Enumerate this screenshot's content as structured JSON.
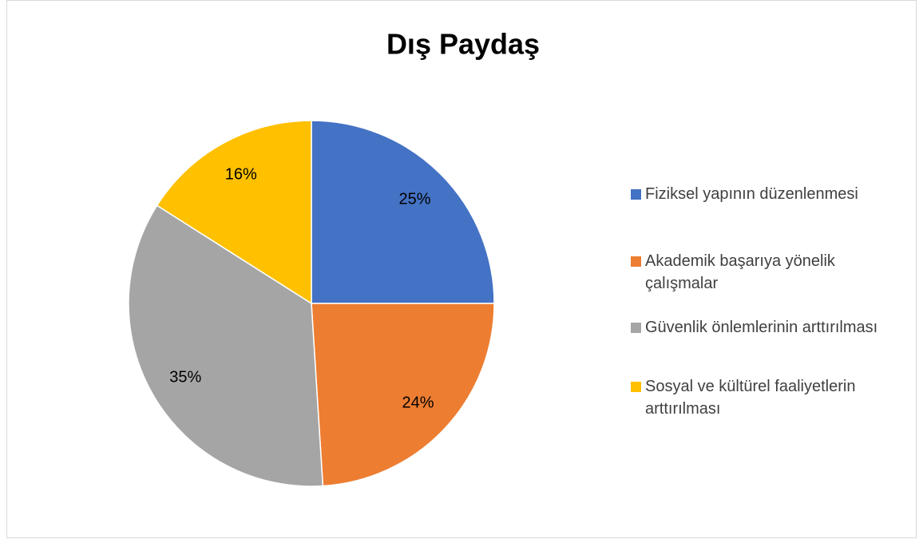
{
  "chart_data": {
    "type": "pie",
    "title": "Dış Paydaş",
    "categories": [
      "Fiziksel yapının düzenlenmesi",
      "Akademik başarıya yönelik çalışmalar",
      "Güvenlik önlemlerinin arttırılması",
      "Sosyal ve kültürel faaliyetlerin arttırılması"
    ],
    "values": [
      25,
      24,
      35,
      16
    ],
    "value_labels": [
      "25%",
      "24%",
      "35%",
      "16%"
    ],
    "colors": [
      "#4472c4",
      "#ed7d31",
      "#a5a5a5",
      "#ffc000"
    ],
    "legend": "right"
  }
}
